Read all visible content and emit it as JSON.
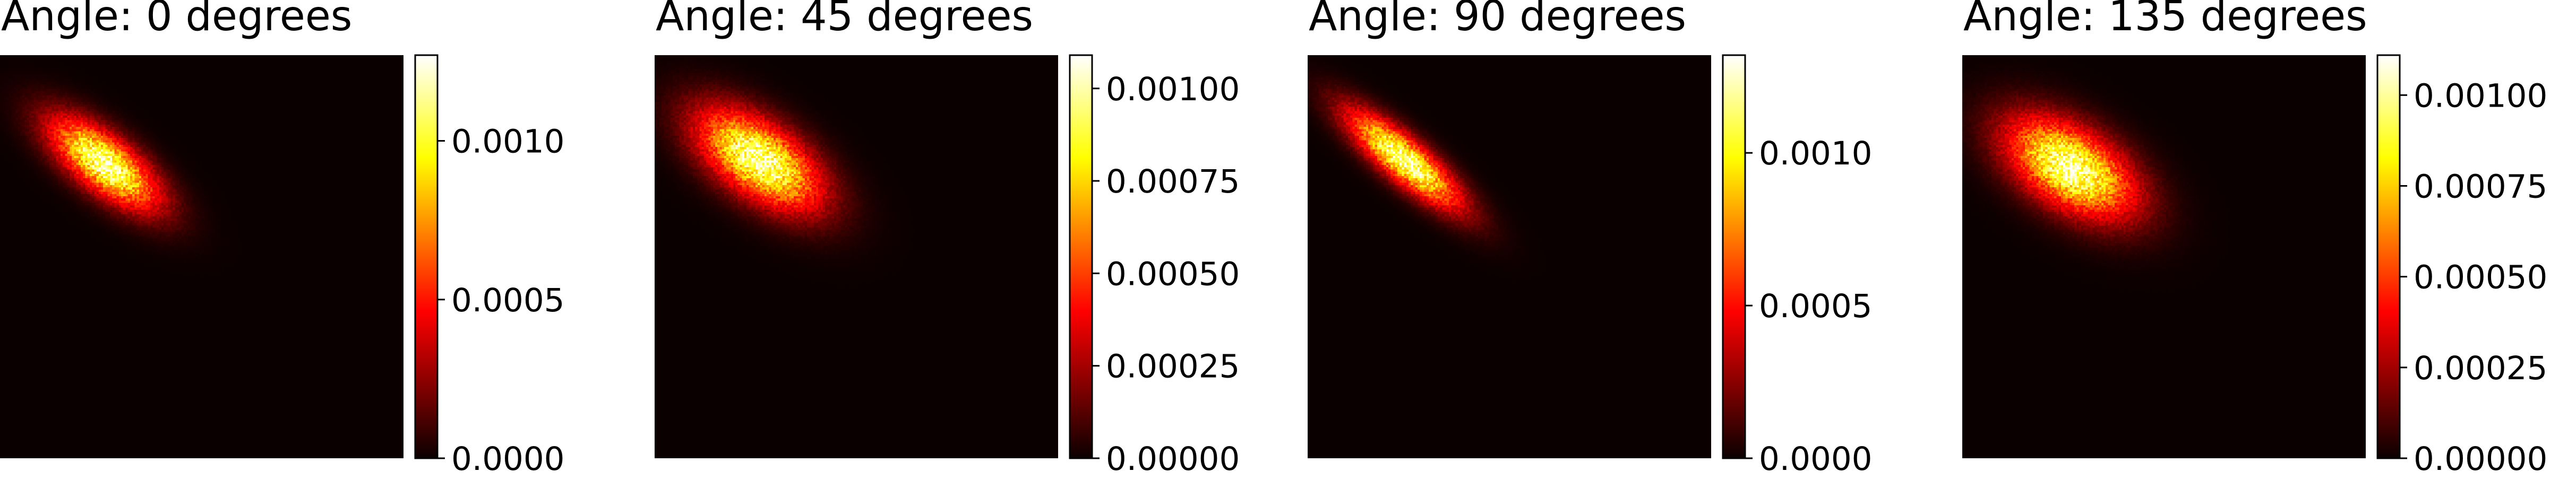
{
  "chart_data": [
    {
      "type": "heatmap",
      "title": "Angle: 0 degrees",
      "colormap": "hot",
      "blob": {
        "cx": 0.26,
        "cy": 0.27,
        "sx": 0.11,
        "sy": 0.045,
        "rot_deg": 38
      },
      "colorbar": {
        "min": 0.0,
        "max": 0.00127,
        "ticks": [
          0.0,
          0.0005,
          0.001
        ],
        "tick_labels": [
          "0.0000",
          "0.0005",
          "0.0010"
        ]
      },
      "axis": "off"
    },
    {
      "type": "heatmap",
      "title": "Angle: 45 degrees",
      "colormap": "hot",
      "blob": {
        "cx": 0.26,
        "cy": 0.26,
        "sx": 0.12,
        "sy": 0.06,
        "rot_deg": 35
      },
      "colorbar": {
        "min": 0.0,
        "max": 0.00109,
        "ticks": [
          0.0,
          0.00025,
          0.0005,
          0.00075,
          0.001
        ],
        "tick_labels": [
          "0.00000",
          "0.00025",
          "0.00050",
          "0.00075",
          "0.00100"
        ]
      },
      "axis": "off"
    },
    {
      "type": "heatmap",
      "title": "Angle: 90 degrees",
      "colormap": "hot",
      "blob": {
        "cx": 0.24,
        "cy": 0.26,
        "sx": 0.12,
        "sy": 0.035,
        "rot_deg": 40
      },
      "colorbar": {
        "min": 0.0,
        "max": 0.00132,
        "ticks": [
          0.0,
          0.0005,
          0.001
        ],
        "tick_labels": [
          "0.0000",
          "0.0005",
          "0.0010"
        ]
      },
      "axis": "off"
    },
    {
      "type": "heatmap",
      "title": "Angle: 135 degrees",
      "colormap": "hot",
      "blob": {
        "cx": 0.27,
        "cy": 0.28,
        "sx": 0.12,
        "sy": 0.065,
        "rot_deg": 32
      },
      "colorbar": {
        "min": 0.0,
        "max": 0.00111,
        "ticks": [
          0.0,
          0.00025,
          0.0005,
          0.00075,
          0.001
        ],
        "tick_labels": [
          "0.00000",
          "0.00025",
          "0.00050",
          "0.00075",
          "0.00100"
        ]
      },
      "axis": "off"
    }
  ]
}
